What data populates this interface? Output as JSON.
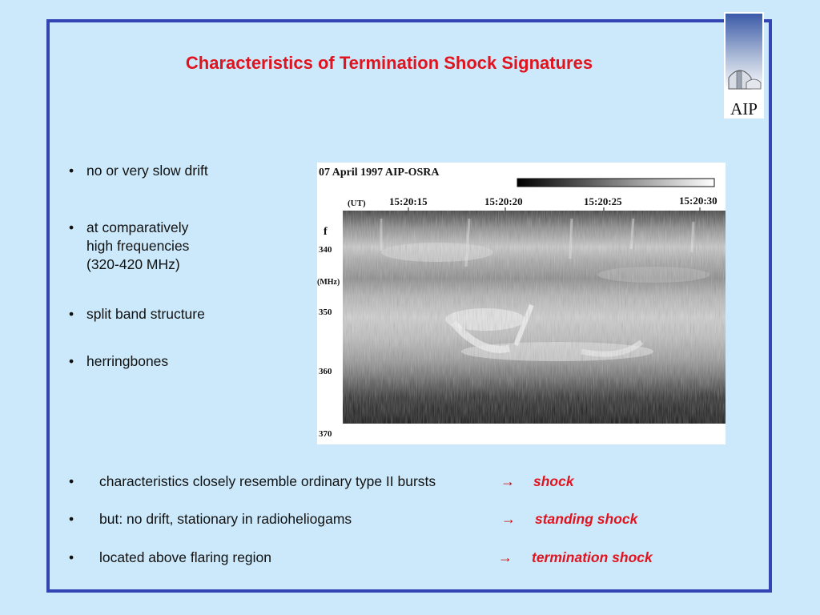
{
  "slide": {
    "title": "Characteristics of Termination Shock Signatures",
    "logo_text": "AIP"
  },
  "bullets": [
    {
      "symbol": "•",
      "lines": [
        "no or very slow drift"
      ]
    },
    {
      "symbol": "•",
      "lines": [
        "at comparatively",
        "high frequencies",
        "(320-420 MHz)"
      ]
    },
    {
      "symbol": "•",
      "lines": [
        "split band structure"
      ]
    },
    {
      "symbol": "•",
      "lines": [
        "herringbones"
      ]
    }
  ],
  "spectrogram": {
    "header": "07 April 1997 AIP-OSRA",
    "time_unit": "(UT)",
    "time_ticks": [
      "15:20:15",
      "15:20:20",
      "15:20:25",
      "15:20:30"
    ],
    "freq_symbol": "f",
    "freq_unit": "(MHz)",
    "freq_ticks": [
      "340",
      "350",
      "360",
      "370"
    ]
  },
  "conclusions": [
    {
      "symbol": "•",
      "text": "characteristics closely resemble ordinary type II bursts",
      "arrow": "→",
      "result": "shock"
    },
    {
      "symbol": "•",
      "text": "but: no drift, stationary in radioheliogams",
      "arrow": "→",
      "result": "standing shock"
    },
    {
      "symbol": "•",
      "text": "located above flaring region",
      "arrow": "→",
      "result": "termination shock"
    }
  ],
  "colors": {
    "background": "#cce9fb",
    "frame": "#3344b3",
    "title": "#e0141e",
    "result": "#e0141e"
  }
}
